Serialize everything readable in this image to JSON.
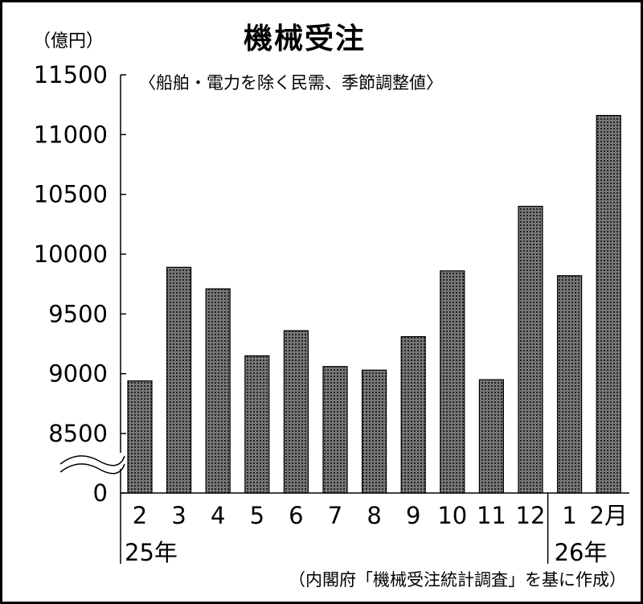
{
  "chart_data": {
    "type": "bar",
    "title": "機械受注",
    "subtitle": "〈船舶・電力を除く民需、季節調整値〉",
    "ylabel": "（億円）",
    "source": "（内閣府「機械受注統計調査」を基に作成）",
    "ylim": [
      8500,
      11500
    ],
    "yticks": [
      "11500",
      "11000",
      "10500",
      "10000",
      "9500",
      "9000",
      "8500",
      "0"
    ],
    "y_axis_break": true,
    "categories": [
      "2",
      "3",
      "4",
      "5",
      "6",
      "7",
      "8",
      "9",
      "10",
      "11",
      "12",
      "1",
      "2月"
    ],
    "year_labels": [
      {
        "label": "25年",
        "start_index": 0
      },
      {
        "label": "26年",
        "start_index": 11
      }
    ],
    "values": [
      8940,
      9890,
      9710,
      9150,
      9360,
      9060,
      9030,
      9310,
      9860,
      8950,
      10400,
      9820,
      11160
    ],
    "bar_color": "#555555",
    "grid": false
  }
}
